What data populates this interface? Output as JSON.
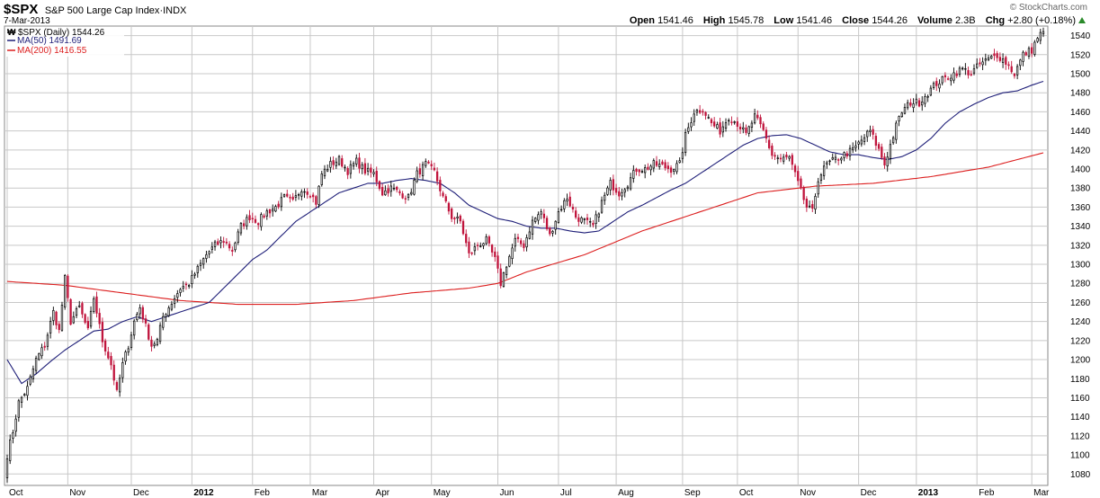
{
  "header": {
    "symbol": "$SPX",
    "description": "S&P 500 Large Cap Index",
    "exchange": "INDX",
    "date": "7-Mar-2013",
    "brand": "© StockCharts.com",
    "open_label": "Open",
    "open": "1541.46",
    "high_label": "High",
    "high": "1545.78",
    "low_label": "Low",
    "low": "1541.46",
    "close_label": "Close",
    "close": "1544.26",
    "volume_label": "Volume",
    "volume": "2.3B",
    "chg_label": "Chg",
    "chg": "+2.80 (+0.18%)"
  },
  "legend": {
    "price": "$SPX (Daily) 1544.26",
    "ma50": "MA(50) 1491.69",
    "ma200": "MA(200) 1416.55"
  },
  "colors": {
    "up": "#000000",
    "down": "#c0143c",
    "ma50": "#1e1e78",
    "ma200": "#dc1e1e",
    "grid": "#c8c8c8"
  },
  "chart_data": {
    "type": "candlestick",
    "title": "$SPX (Daily)",
    "ylim": [
      1068,
      1550
    ],
    "y_ticks": [
      1080,
      1100,
      1120,
      1140,
      1160,
      1180,
      1200,
      1220,
      1240,
      1260,
      1280,
      1300,
      1320,
      1340,
      1360,
      1380,
      1400,
      1420,
      1440,
      1460,
      1480,
      1500,
      1520,
      1540
    ],
    "x_ticks": [
      {
        "label": "Oct",
        "bold": false,
        "index": 0
      },
      {
        "label": "Nov",
        "bold": false,
        "index": 21
      },
      {
        "label": "Dec",
        "bold": false,
        "index": 43
      },
      {
        "label": "2012",
        "bold": true,
        "index": 64
      },
      {
        "label": "Feb",
        "bold": false,
        "index": 85
      },
      {
        "label": "Mar",
        "bold": false,
        "index": 105
      },
      {
        "label": "Apr",
        "bold": false,
        "index": 127
      },
      {
        "label": "May",
        "bold": false,
        "index": 147
      },
      {
        "label": "Jun",
        "bold": false,
        "index": 170
      },
      {
        "label": "Jul",
        "bold": false,
        "index": 191
      },
      {
        "label": "Aug",
        "bold": false,
        "index": 211
      },
      {
        "label": "Sep",
        "bold": false,
        "index": 234
      },
      {
        "label": "Oct",
        "bold": false,
        "index": 253
      },
      {
        "label": "Nov",
        "bold": false,
        "index": 274
      },
      {
        "label": "Dec",
        "bold": false,
        "index": 295
      },
      {
        "label": "2013",
        "bold": true,
        "index": 315
      },
      {
        "label": "Feb",
        "bold": false,
        "index": 336
      },
      {
        "label": "Mar",
        "bold": false,
        "index": 355
      }
    ],
    "grid": true,
    "n_bars": 360,
    "close_anchors": [
      [
        0,
        1100
      ],
      [
        2,
        1125
      ],
      [
        4,
        1155
      ],
      [
        7,
        1170
      ],
      [
        10,
        1200
      ],
      [
        13,
        1215
      ],
      [
        16,
        1250
      ],
      [
        18,
        1230
      ],
      [
        20,
        1285
      ],
      [
        22,
        1240
      ],
      [
        25,
        1255
      ],
      [
        28,
        1230
      ],
      [
        30,
        1265
      ],
      [
        33,
        1220
      ],
      [
        36,
        1195
      ],
      [
        38,
        1165
      ],
      [
        40,
        1195
      ],
      [
        42,
        1215
      ],
      [
        44,
        1240
      ],
      [
        46,
        1255
      ],
      [
        48,
        1235
      ],
      [
        50,
        1215
      ],
      [
        52,
        1220
      ],
      [
        54,
        1245
      ],
      [
        57,
        1260
      ],
      [
        60,
        1275
      ],
      [
        63,
        1280
      ],
      [
        66,
        1295
      ],
      [
        69,
        1310
      ],
      [
        72,
        1320
      ],
      [
        75,
        1325
      ],
      [
        78,
        1315
      ],
      [
        81,
        1340
      ],
      [
        84,
        1350
      ],
      [
        87,
        1345
      ],
      [
        90,
        1355
      ],
      [
        93,
        1360
      ],
      [
        96,
        1370
      ],
      [
        99,
        1365
      ],
      [
        102,
        1380
      ],
      [
        105,
        1375
      ],
      [
        107,
        1365
      ],
      [
        109,
        1395
      ],
      [
        112,
        1405
      ],
      [
        115,
        1410
      ],
      [
        118,
        1398
      ],
      [
        121,
        1408
      ],
      [
        124,
        1398
      ],
      [
        127,
        1395
      ],
      [
        130,
        1375
      ],
      [
        133,
        1380
      ],
      [
        136,
        1375
      ],
      [
        139,
        1370
      ],
      [
        142,
        1395
      ],
      [
        145,
        1405
      ],
      [
        148,
        1397
      ],
      [
        151,
        1370
      ],
      [
        154,
        1350
      ],
      [
        157,
        1345
      ],
      [
        160,
        1310
      ],
      [
        163,
        1320
      ],
      [
        166,
        1325
      ],
      [
        169,
        1305
      ],
      [
        171,
        1280
      ],
      [
        173,
        1300
      ],
      [
        176,
        1325
      ],
      [
        179,
        1320
      ],
      [
        182,
        1345
      ],
      [
        185,
        1355
      ],
      [
        188,
        1330
      ],
      [
        191,
        1355
      ],
      [
        194,
        1370
      ],
      [
        197,
        1350
      ],
      [
        200,
        1345
      ],
      [
        203,
        1340
      ],
      [
        206,
        1365
      ],
      [
        209,
        1385
      ],
      [
        212,
        1375
      ],
      [
        215,
        1385
      ],
      [
        218,
        1400
      ],
      [
        221,
        1400
      ],
      [
        224,
        1405
      ],
      [
        227,
        1403
      ],
      [
        230,
        1400
      ],
      [
        233,
        1405
      ],
      [
        235,
        1435
      ],
      [
        238,
        1460
      ],
      [
        241,
        1463
      ],
      [
        244,
        1448
      ],
      [
        247,
        1440
      ],
      [
        250,
        1455
      ],
      [
        253,
        1448
      ],
      [
        256,
        1436
      ],
      [
        259,
        1455
      ],
      [
        262,
        1440
      ],
      [
        265,
        1415
      ],
      [
        268,
        1410
      ],
      [
        271,
        1412
      ],
      [
        274,
        1385
      ],
      [
        277,
        1360
      ],
      [
        279,
        1355
      ],
      [
        281,
        1390
      ],
      [
        284,
        1405
      ],
      [
        287,
        1410
      ],
      [
        290,
        1415
      ],
      [
        293,
        1420
      ],
      [
        296,
        1430
      ],
      [
        299,
        1440
      ],
      [
        302,
        1420
      ],
      [
        304,
        1405
      ],
      [
        306,
        1425
      ],
      [
        308,
        1445
      ],
      [
        310,
        1460
      ],
      [
        313,
        1470
      ],
      [
        316,
        1470
      ],
      [
        319,
        1480
      ],
      [
        322,
        1490
      ],
      [
        325,
        1495
      ],
      [
        328,
        1500
      ],
      [
        331,
        1505
      ],
      [
        334,
        1500
      ],
      [
        337,
        1510
      ],
      [
        340,
        1515
      ],
      [
        343,
        1520
      ],
      [
        346,
        1512
      ],
      [
        349,
        1500
      ],
      [
        352,
        1520
      ],
      [
        355,
        1525
      ],
      [
        357,
        1538
      ],
      [
        359,
        1544
      ]
    ],
    "ma50_points": [
      [
        0,
        1200
      ],
      [
        5,
        1175
      ],
      [
        10,
        1185
      ],
      [
        15,
        1198
      ],
      [
        20,
        1210
      ],
      [
        25,
        1220
      ],
      [
        30,
        1230
      ],
      [
        35,
        1232
      ],
      [
        40,
        1240
      ],
      [
        45,
        1245
      ],
      [
        50,
        1240
      ],
      [
        55,
        1245
      ],
      [
        60,
        1250
      ],
      [
        65,
        1255
      ],
      [
        70,
        1260
      ],
      [
        75,
        1275
      ],
      [
        80,
        1290
      ],
      [
        85,
        1305
      ],
      [
        90,
        1315
      ],
      [
        95,
        1330
      ],
      [
        100,
        1345
      ],
      [
        105,
        1355
      ],
      [
        110,
        1365
      ],
      [
        115,
        1375
      ],
      [
        120,
        1380
      ],
      [
        125,
        1385
      ],
      [
        130,
        1385
      ],
      [
        135,
        1388
      ],
      [
        140,
        1390
      ],
      [
        145,
        1388
      ],
      [
        150,
        1385
      ],
      [
        155,
        1375
      ],
      [
        160,
        1362
      ],
      [
        165,
        1355
      ],
      [
        170,
        1348
      ],
      [
        175,
        1345
      ],
      [
        180,
        1340
      ],
      [
        185,
        1338
      ],
      [
        190,
        1338
      ],
      [
        195,
        1335
      ],
      [
        200,
        1333
      ],
      [
        205,
        1335
      ],
      [
        210,
        1345
      ],
      [
        215,
        1355
      ],
      [
        220,
        1362
      ],
      [
        225,
        1370
      ],
      [
        230,
        1378
      ],
      [
        235,
        1385
      ],
      [
        240,
        1395
      ],
      [
        245,
        1405
      ],
      [
        250,
        1415
      ],
      [
        255,
        1425
      ],
      [
        260,
        1432
      ],
      [
        265,
        1435
      ],
      [
        270,
        1436
      ],
      [
        275,
        1432
      ],
      [
        280,
        1425
      ],
      [
        285,
        1418
      ],
      [
        290,
        1415
      ],
      [
        295,
        1415
      ],
      [
        300,
        1412
      ],
      [
        305,
        1410
      ],
      [
        310,
        1413
      ],
      [
        315,
        1420
      ],
      [
        320,
        1432
      ],
      [
        325,
        1448
      ],
      [
        330,
        1460
      ],
      [
        335,
        1468
      ],
      [
        340,
        1475
      ],
      [
        345,
        1480
      ],
      [
        350,
        1482
      ],
      [
        355,
        1488
      ],
      [
        359,
        1492
      ]
    ],
    "ma200_points": [
      [
        0,
        1282
      ],
      [
        20,
        1278
      ],
      [
        40,
        1270
      ],
      [
        60,
        1262
      ],
      [
        80,
        1258
      ],
      [
        100,
        1258
      ],
      [
        120,
        1262
      ],
      [
        140,
        1270
      ],
      [
        160,
        1275
      ],
      [
        170,
        1280
      ],
      [
        180,
        1292
      ],
      [
        200,
        1310
      ],
      [
        220,
        1335
      ],
      [
        240,
        1355
      ],
      [
        260,
        1375
      ],
      [
        280,
        1382
      ],
      [
        300,
        1385
      ],
      [
        320,
        1392
      ],
      [
        340,
        1402
      ],
      [
        359,
        1417
      ]
    ]
  }
}
